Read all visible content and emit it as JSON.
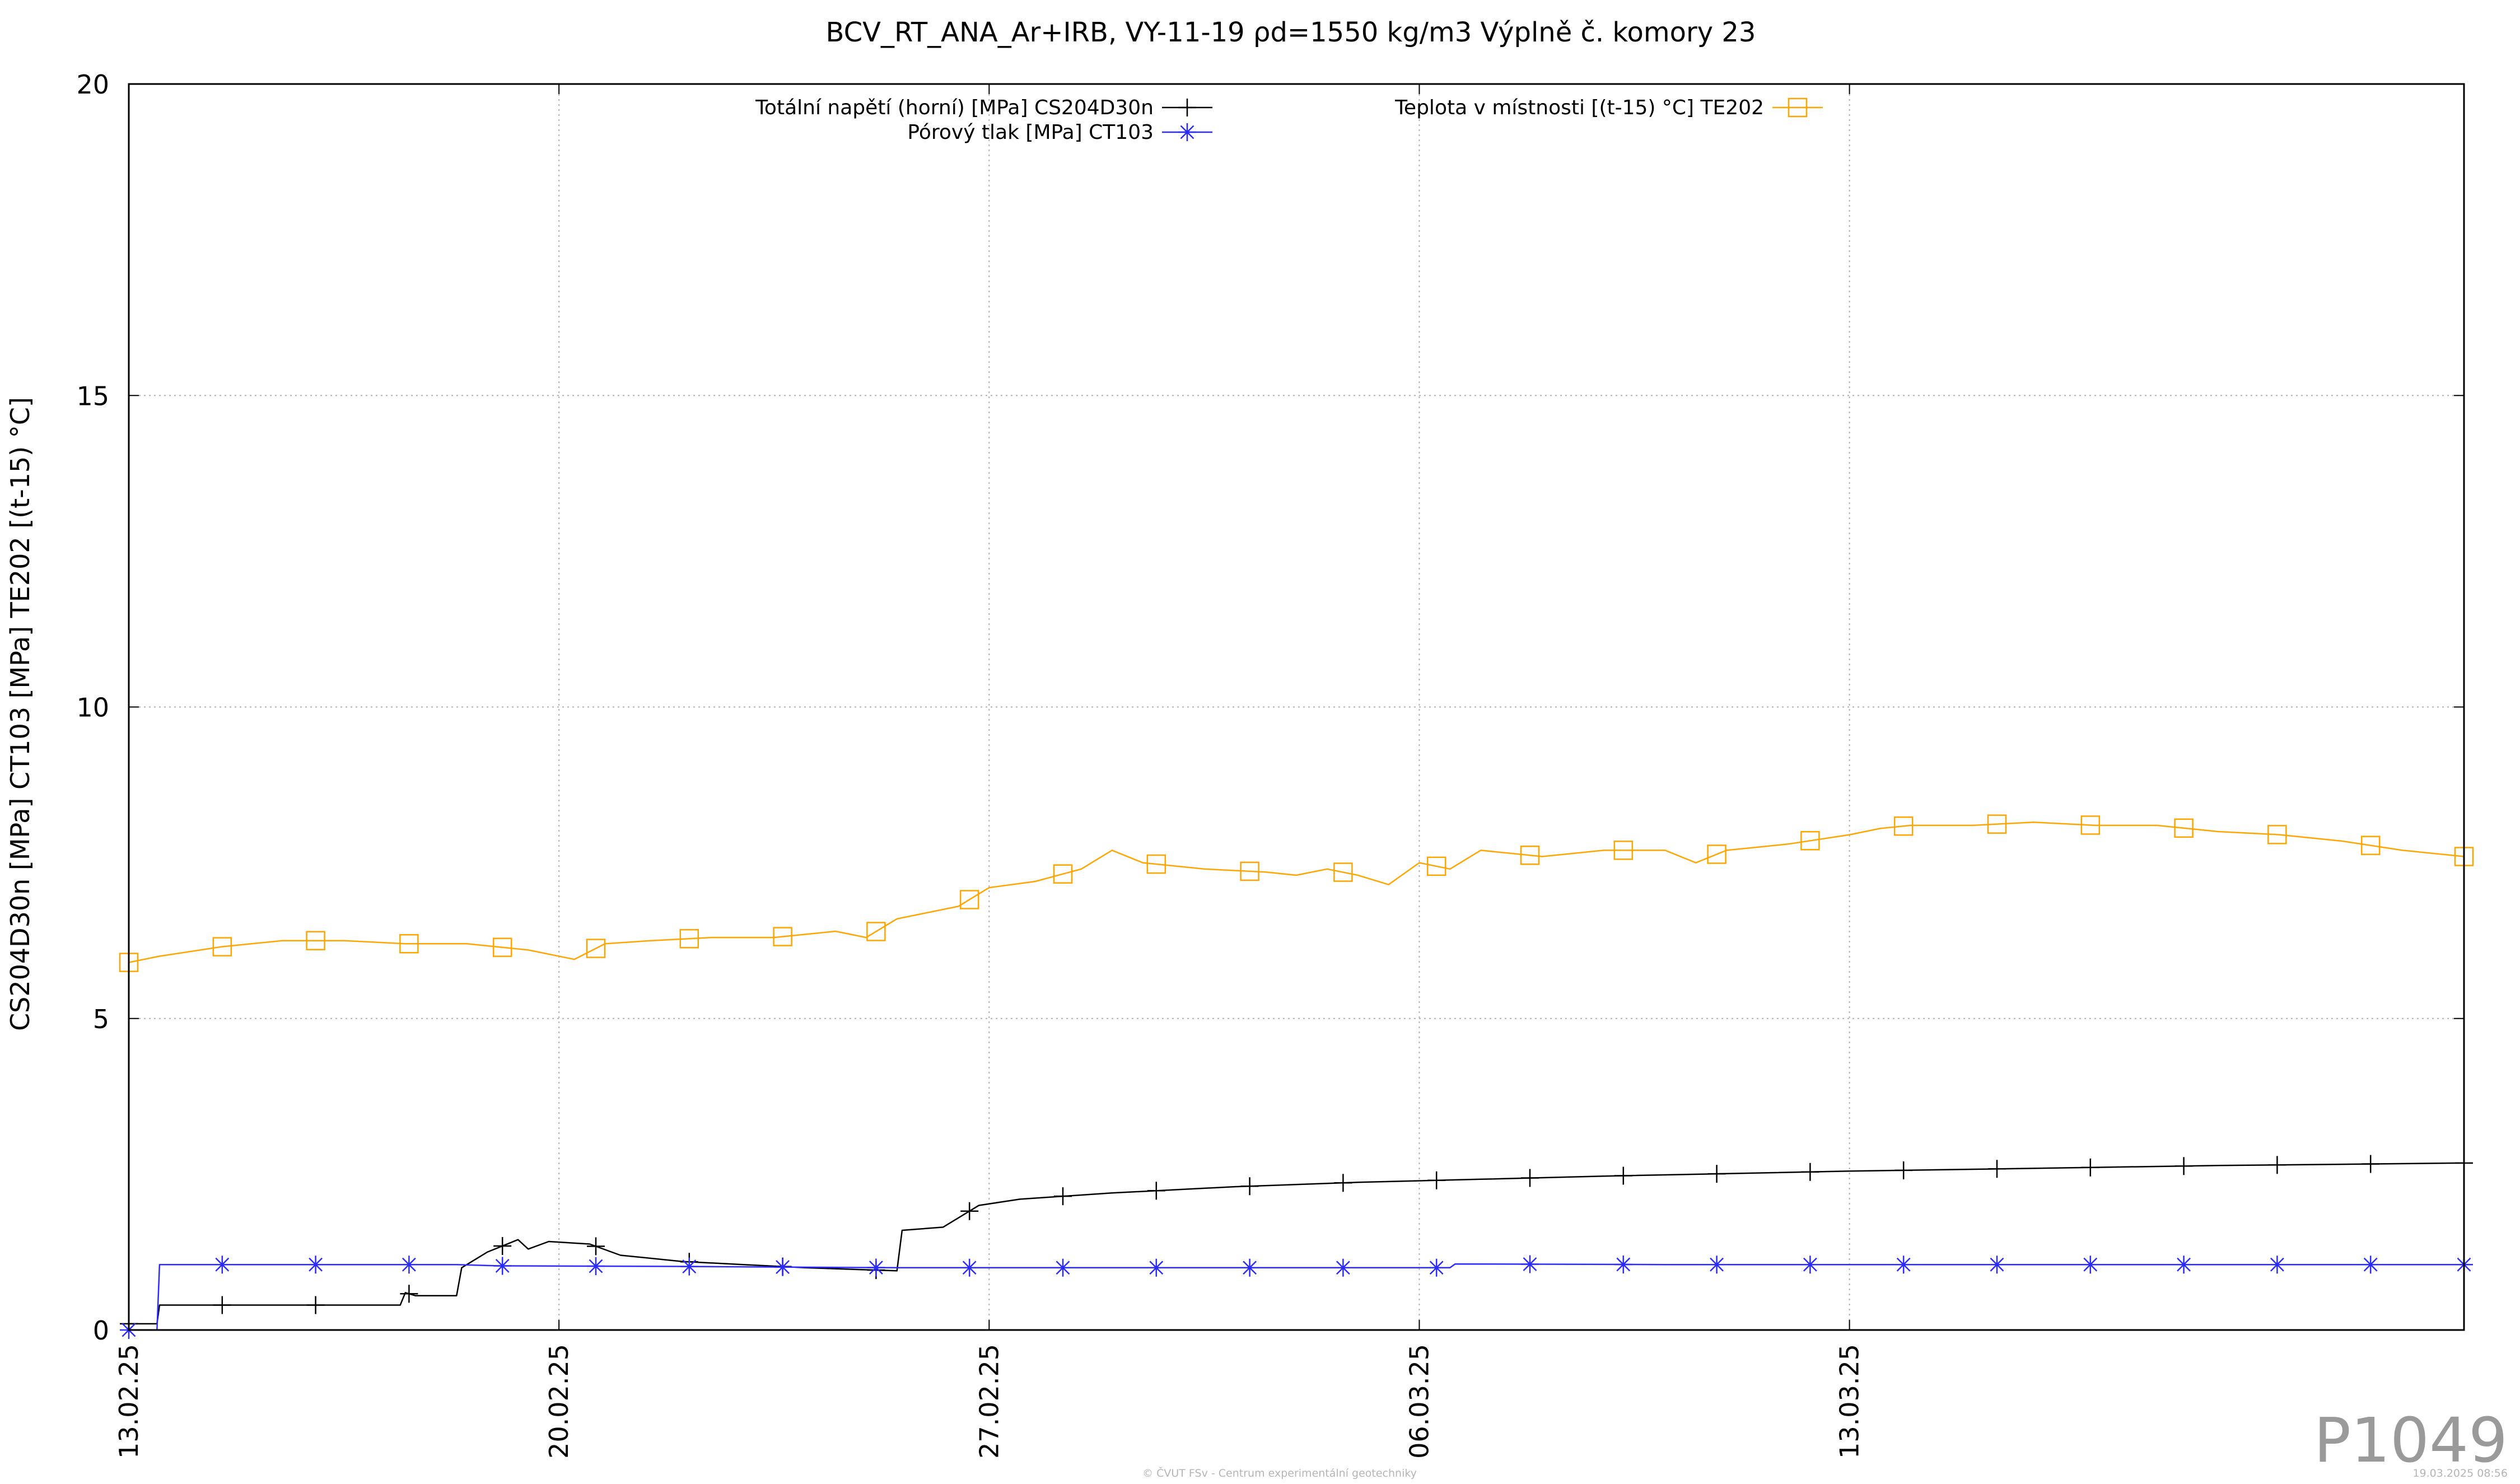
{
  "chart_data": {
    "type": "line",
    "title": "BCV_RT_ANA_Ar+IRB, VY-11-19 ρd=1550 kg/m3 Výplně č. komory 23",
    "ylabel": "CS204D30n [MPa] CT103 [MPa] TE202 [(t-15) °C]",
    "xlabel": "",
    "ylim": [
      0,
      20
    ],
    "y_ticks": [
      "0",
      "5",
      "10",
      "15",
      "20"
    ],
    "x_range": [
      "2025-02-13",
      "2025-03-23"
    ],
    "x_ticks": [
      {
        "date": "2025-02-13",
        "label": "13.02.25"
      },
      {
        "date": "2025-02-20",
        "label": "20.02.25"
      },
      {
        "date": "2025-02-27",
        "label": "27.02.25"
      },
      {
        "date": "2025-03-06",
        "label": "06.03.25"
      },
      {
        "date": "2025-03-13",
        "label": "13.03.25"
      }
    ],
    "grid": true,
    "legend_position": "top",
    "series": [
      {
        "name": "Totální napětí (horní) [MPa] CS204D30n",
        "color": "#000000",
        "marker": "plus",
        "points": [
          [
            "2025-02-13T00:00",
            0.1
          ],
          [
            "2025-02-13T11:00",
            0.1
          ],
          [
            "2025-02-13T12:00",
            0.4
          ],
          [
            "2025-02-15T00:00",
            0.4
          ],
          [
            "2025-02-16T12:00",
            0.4
          ],
          [
            "2025-02-17T10:00",
            0.4
          ],
          [
            "2025-02-17T12:00",
            0.6
          ],
          [
            "2025-02-17T16:00",
            0.55
          ],
          [
            "2025-02-18T08:00",
            0.55
          ],
          [
            "2025-02-18T10:00",
            1.0
          ],
          [
            "2025-02-18T20:00",
            1.25
          ],
          [
            "2025-02-19T08:00",
            1.45
          ],
          [
            "2025-02-19T12:00",
            1.3
          ],
          [
            "2025-02-19T20:00",
            1.42
          ],
          [
            "2025-02-20T12:00",
            1.38
          ],
          [
            "2025-02-21T00:00",
            1.2
          ],
          [
            "2025-02-22T00:00",
            1.1
          ],
          [
            "2025-02-23T00:00",
            1.05
          ],
          [
            "2025-02-24T00:00",
            1.0
          ],
          [
            "2025-02-25T12:00",
            0.95
          ],
          [
            "2025-02-25T14:00",
            1.6
          ],
          [
            "2025-02-26T06:00",
            1.65
          ],
          [
            "2025-02-26T20:00",
            2.0
          ],
          [
            "2025-02-27T12:00",
            2.1
          ],
          [
            "2025-03-01T00:00",
            2.2
          ],
          [
            "2025-03-03T00:00",
            2.3
          ],
          [
            "2025-03-05T00:00",
            2.37
          ],
          [
            "2025-03-07T00:00",
            2.42
          ],
          [
            "2025-03-09T00:00",
            2.47
          ],
          [
            "2025-03-11T00:00",
            2.51
          ],
          [
            "2025-03-13T00:00",
            2.55
          ],
          [
            "2025-03-15T00:00",
            2.58
          ],
          [
            "2025-03-17T00:00",
            2.61
          ],
          [
            "2025-03-19T00:00",
            2.64
          ],
          [
            "2025-03-21T00:00",
            2.66
          ],
          [
            "2025-03-23T00:00",
            2.68
          ]
        ]
      },
      {
        "name": "Pórový tlak [MPa] CT103",
        "color": "#2b2bff",
        "marker": "star",
        "points": [
          [
            "2025-02-13T00:00",
            0.0
          ],
          [
            "2025-02-13T11:00",
            0.0
          ],
          [
            "2025-02-13T12:00",
            1.05
          ],
          [
            "2025-02-16T00:00",
            1.05
          ],
          [
            "2025-02-18T08:00",
            1.05
          ],
          [
            "2025-02-19T00:00",
            1.03
          ],
          [
            "2025-02-22T00:00",
            1.02
          ],
          [
            "2025-02-25T12:00",
            1.0
          ],
          [
            "2025-02-28T00:00",
            1.0
          ],
          [
            "2025-03-03T00:00",
            1.0
          ],
          [
            "2025-03-06T12:00",
            1.0
          ],
          [
            "2025-03-06T14:00",
            1.06
          ],
          [
            "2025-03-10T00:00",
            1.05
          ],
          [
            "2025-03-15T00:00",
            1.05
          ],
          [
            "2025-03-23T00:00",
            1.05
          ]
        ]
      },
      {
        "name": "Teplota v místnosti [(t-15) °C] TE202",
        "color": "#ffa500",
        "marker": "square",
        "points": [
          [
            "2025-02-13T00:00",
            5.9
          ],
          [
            "2025-02-13T12:00",
            6.0
          ],
          [
            "2025-02-14T12:00",
            6.15
          ],
          [
            "2025-02-15T12:00",
            6.25
          ],
          [
            "2025-02-16T12:00",
            6.25
          ],
          [
            "2025-02-17T12:00",
            6.2
          ],
          [
            "2025-02-18T12:00",
            6.2
          ],
          [
            "2025-02-19T12:00",
            6.1
          ],
          [
            "2025-02-20T06:00",
            5.95
          ],
          [
            "2025-02-20T18:00",
            6.2
          ],
          [
            "2025-02-21T12:00",
            6.25
          ],
          [
            "2025-02-22T12:00",
            6.3
          ],
          [
            "2025-02-23T12:00",
            6.3
          ],
          [
            "2025-02-24T12:00",
            6.4
          ],
          [
            "2025-02-25T00:00",
            6.3
          ],
          [
            "2025-02-25T12:00",
            6.6
          ],
          [
            "2025-02-26T12:00",
            6.8
          ],
          [
            "2025-02-27T00:00",
            7.1
          ],
          [
            "2025-02-27T18:00",
            7.2
          ],
          [
            "2025-02-28T12:00",
            7.4
          ],
          [
            "2025-03-01T00:00",
            7.7
          ],
          [
            "2025-03-01T12:00",
            7.5
          ],
          [
            "2025-03-02T12:00",
            7.4
          ],
          [
            "2025-03-03T12:00",
            7.35
          ],
          [
            "2025-03-04T00:00",
            7.3
          ],
          [
            "2025-03-04T12:00",
            7.4
          ],
          [
            "2025-03-05T00:00",
            7.3
          ],
          [
            "2025-03-05T12:00",
            7.15
          ],
          [
            "2025-03-06T00:00",
            7.5
          ],
          [
            "2025-03-06T12:00",
            7.4
          ],
          [
            "2025-03-07T00:00",
            7.7
          ],
          [
            "2025-03-08T00:00",
            7.6
          ],
          [
            "2025-03-09T00:00",
            7.7
          ],
          [
            "2025-03-10T00:00",
            7.7
          ],
          [
            "2025-03-10T12:00",
            7.5
          ],
          [
            "2025-03-11T00:00",
            7.7
          ],
          [
            "2025-03-12T00:00",
            7.8
          ],
          [
            "2025-03-13T00:00",
            7.95
          ],
          [
            "2025-03-13T12:00",
            8.05
          ],
          [
            "2025-03-14T00:00",
            8.1
          ],
          [
            "2025-03-15T00:00",
            8.1
          ],
          [
            "2025-03-16T00:00",
            8.15
          ],
          [
            "2025-03-17T00:00",
            8.1
          ],
          [
            "2025-03-18T00:00",
            8.1
          ],
          [
            "2025-03-19T00:00",
            8.0
          ],
          [
            "2025-03-20T00:00",
            7.95
          ],
          [
            "2025-03-21T00:00",
            7.85
          ],
          [
            "2025-03-22T00:00",
            7.7
          ],
          [
            "2025-03-23T00:00",
            7.6
          ]
        ]
      }
    ]
  },
  "watermark": "P1049",
  "footer": {
    "credit": "© ČVUT FSv - Centrum experimentální geotechniky",
    "timestamp": "19.03.2025 08:56"
  }
}
